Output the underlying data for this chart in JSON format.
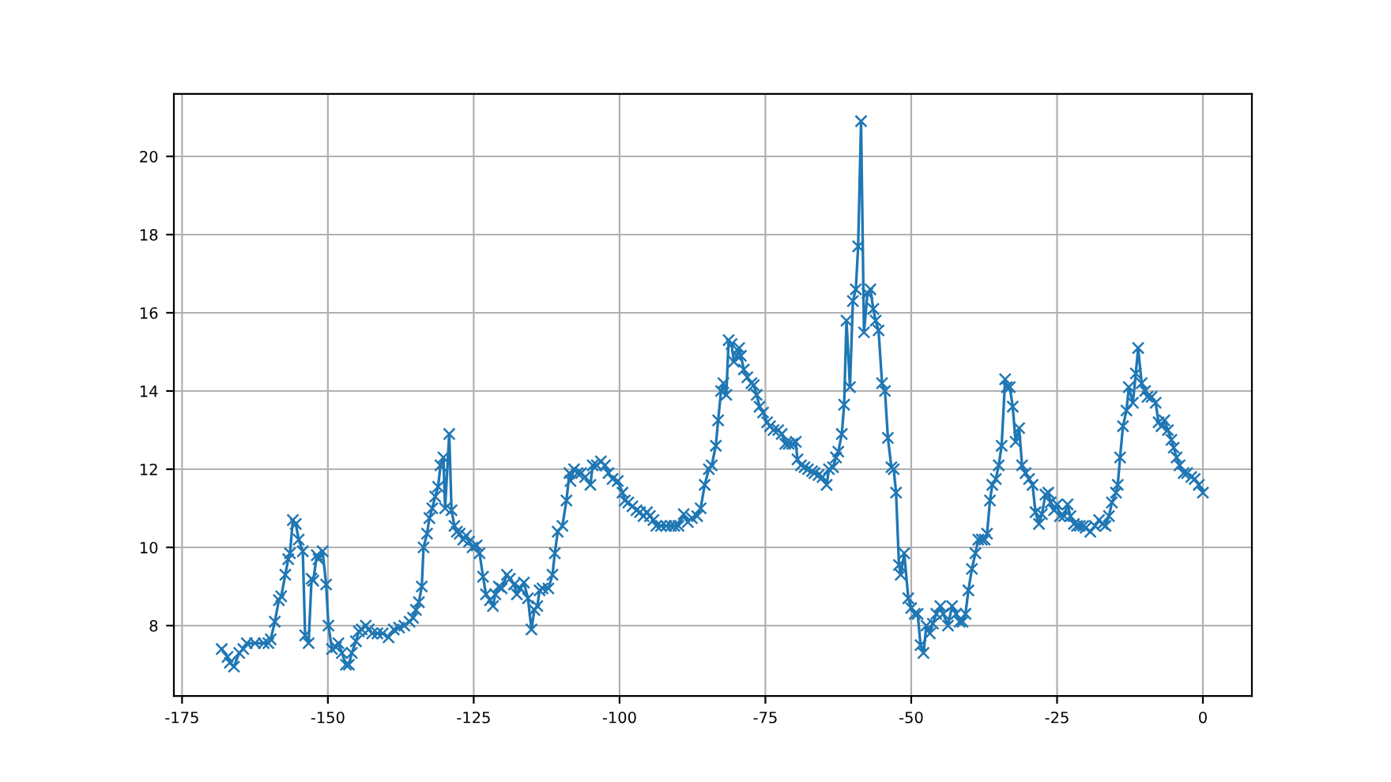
{
  "chart_data": {
    "type": "line",
    "x": [
      -168.2,
      -167.2,
      -166.8,
      -166.1,
      -165.2,
      -164.5,
      -163.9,
      -162.5,
      -161,
      -160.2,
      -159.8,
      -159.1,
      -158.4,
      -158.0,
      -157.3,
      -156.8,
      -156.5,
      -156.0,
      -155.5,
      -155.0,
      -154.3,
      -153.9,
      -153.3,
      -152.8,
      -152.5,
      -151.9,
      -151.6,
      -150.9,
      -150.3,
      -149.9,
      -149.3,
      -148.6,
      -148.2,
      -147.6,
      -146.9,
      -146.4,
      -145.9,
      -145.2,
      -144.7,
      -144.2,
      -143.5,
      -143.0,
      -142.4,
      -141.5,
      -140.6,
      -139.6,
      -138.7,
      -137.8,
      -136.9,
      -136.0,
      -135.4,
      -134.9,
      -134.4,
      -133.9,
      -133.6,
      -133.0,
      -132.6,
      -132.1,
      -131.6,
      -131.1,
      -130.7,
      -130.2,
      -129.9,
      -129.2,
      -128.8,
      -128.3,
      -127.9,
      -127.4,
      -126.8,
      -126.3,
      -125.8,
      -125.2,
      -124.5,
      -124.0,
      -123.4,
      -122.9,
      -122.2,
      -121.7,
      -121.3,
      -120.7,
      -120.2,
      -119.3,
      -118.8,
      -118.1,
      -117.6,
      -117.0,
      -116.4,
      -115.7,
      -115.1,
      -114.6,
      -114.1,
      -113.7,
      -113.2,
      -112.2,
      -111.5,
      -111.1,
      -110.6,
      -109.8,
      -109.1,
      -108.6,
      -108.4,
      -107.8,
      -107.2,
      -106.6,
      -105.9,
      -105.0,
      -104.6,
      -103.9,
      -103.2,
      -102.5,
      -101.9,
      -101.2,
      -100.3,
      -99.5,
      -99.1,
      -98.5,
      -97.8,
      -97.1,
      -96.5,
      -95.9,
      -95.3,
      -94.8,
      -94.2,
      -93.7,
      -92.9,
      -92.0,
      -91.2,
      -90.6,
      -89.9,
      -89.0,
      -88.3,
      -87.6,
      -86.7,
      -86.1,
      -85.4,
      -84.7,
      -84.2,
      -83.5,
      -83.1,
      -82.6,
      -82.2,
      -81.7,
      -81.3,
      -80.8,
      -80.4,
      -79.9,
      -79.5,
      -79.2,
      -78.7,
      -78.1,
      -77.4,
      -77.0,
      -76.5,
      -76.0,
      -75.4,
      -74.7,
      -74.2,
      -73.6,
      -72.8,
      -72.2,
      -71.6,
      -71.0,
      -70.4,
      -69.8,
      -69.5,
      -68.9,
      -68.3,
      -67.7,
      -67.0,
      -66.6,
      -65.9,
      -65.2,
      -64.5,
      -64.1,
      -63.4,
      -62.9,
      -62.5,
      -61.9,
      -61.5,
      -61.1,
      -60.5,
      -60.0,
      -59.5,
      -59.1,
      -58.6,
      -58.1,
      -57.5,
      -57.0,
      -56.5,
      -56.1,
      -55.6,
      -55.0,
      -54.5,
      -54.0,
      -53.4,
      -53.0,
      -52.6,
      -52.1,
      -51.8,
      -51.2,
      -50.5,
      -50.0,
      -49.4,
      -48.9,
      -48.4,
      -47.9,
      -47.4,
      -46.8,
      -46.3,
      -45.7,
      -45.0,
      -44.5,
      -43.7,
      -43.0,
      -42.3,
      -41.7,
      -41.2,
      -40.7,
      -40.2,
      -39.6,
      -39.0,
      -38.5,
      -37.9,
      -37.4,
      -37.0,
      -36.5,
      -36.1,
      -35.5,
      -35.0,
      -34.5,
      -33.9,
      -33.6,
      -33.1,
      -32.6,
      -32.1,
      -31.5,
      -31.0,
      -30.4,
      -29.8,
      -29.2,
      -28.7,
      -28.1,
      -27.6,
      -27.0,
      -26.5,
      -26.1,
      -25.5,
      -25.0,
      -24.5,
      -23.8,
      -23.2,
      -22.7,
      -22.1,
      -21.6,
      -21.1,
      -20.5,
      -20.1,
      -19.3,
      -18.5,
      -17.8,
      -17.2,
      -16.7,
      -16.1,
      -15.6,
      -14.9,
      -14.6,
      -14.2,
      -13.7,
      -13.1,
      -12.7,
      -12.0,
      -11.5,
      -11.1,
      -10.5,
      -9.9,
      -9.5,
      -8.8,
      -8.1,
      -7.6,
      -7.1,
      -6.6,
      -6.0,
      -5.4,
      -5.0,
      -4.5,
      -4.0,
      -3.3,
      -2.7,
      -2.0,
      -1.4,
      -0.7,
      0
    ],
    "series": [
      {
        "color": "#1f77b4",
        "values": [
          7.4,
          7.2,
          7.05,
          6.95,
          7.3,
          7.4,
          7.55,
          7.55,
          7.55,
          7.55,
          7.65,
          8.1,
          8.65,
          8.75,
          9.3,
          9.7,
          9.85,
          10.7,
          10.6,
          10.2,
          9.9,
          7.75,
          7.55,
          9.2,
          9.15,
          9.8,
          9.7,
          9.9,
          9.05,
          8.0,
          7.4,
          7.45,
          7.55,
          7.3,
          7.0,
          7.0,
          7.3,
          7.6,
          7.85,
          7.9,
          8.0,
          7.9,
          7.8,
          7.8,
          7.8,
          7.7,
          7.9,
          7.95,
          8.0,
          8.1,
          8.2,
          8.4,
          8.6,
          9.0,
          10.0,
          10.35,
          10.75,
          11.0,
          11.3,
          11.55,
          12.1,
          12.3,
          11.0,
          12.9,
          10.95,
          10.55,
          10.4,
          10.35,
          10.2,
          10.3,
          10.15,
          10.0,
          10.05,
          9.85,
          9.25,
          8.8,
          8.65,
          8.5,
          8.8,
          9.0,
          8.95,
          9.3,
          9.2,
          9.05,
          8.8,
          8.95,
          9.1,
          8.7,
          7.9,
          8.4,
          8.5,
          8.9,
          8.95,
          8.95,
          9.3,
          9.85,
          10.4,
          10.55,
          11.2,
          11.9,
          11.7,
          12.0,
          11.9,
          11.9,
          11.8,
          11.6,
          12.1,
          12.1,
          12.2,
          12.1,
          11.9,
          11.75,
          11.7,
          11.4,
          11.2,
          11.15,
          11.05,
          10.95,
          10.9,
          10.8,
          10.9,
          10.8,
          10.7,
          10.55,
          10.55,
          10.55,
          10.55,
          10.55,
          10.55,
          10.85,
          10.65,
          10.75,
          10.8,
          11.0,
          11.6,
          12.0,
          12.1,
          12.6,
          13.25,
          14.0,
          14.2,
          13.9,
          15.3,
          15.2,
          14.75,
          14.9,
          15.1,
          14.9,
          14.55,
          14.35,
          14.2,
          14.15,
          13.9,
          13.6,
          13.45,
          13.2,
          13.1,
          13.0,
          13.0,
          12.9,
          12.65,
          12.65,
          12.65,
          12.7,
          12.25,
          12.1,
          12.05,
          12.0,
          11.95,
          11.9,
          11.85,
          11.8,
          11.6,
          12.0,
          12.05,
          12.3,
          12.45,
          12.9,
          13.65,
          15.8,
          14.1,
          16.3,
          16.6,
          17.7,
          20.9,
          15.5,
          16.5,
          16.6,
          16.1,
          15.8,
          15.55,
          14.2,
          14.0,
          12.8,
          12.05,
          12.0,
          11.4,
          9.55,
          9.3,
          9.85,
          8.7,
          8.45,
          8.3,
          8.3,
          7.5,
          7.3,
          8.0,
          7.8,
          8.05,
          8.3,
          8.5,
          8.3,
          8.0,
          8.5,
          8.3,
          8.1,
          8.1,
          8.3,
          8.9,
          9.45,
          9.85,
          10.2,
          10.2,
          10.2,
          10.35,
          11.2,
          11.6,
          11.75,
          12.1,
          12.6,
          14.3,
          14.1,
          14.1,
          13.6,
          12.7,
          13.05,
          12.1,
          11.9,
          11.75,
          11.6,
          10.9,
          10.6,
          10.85,
          11.35,
          11.4,
          11.15,
          10.95,
          11.1,
          10.8,
          10.8,
          11.1,
          10.8,
          10.6,
          10.55,
          10.55,
          10.55,
          10.5,
          10.4,
          10.55,
          10.7,
          10.6,
          10.55,
          10.8,
          11.15,
          11.4,
          11.6,
          12.3,
          13.1,
          13.5,
          14.1,
          13.7,
          14.45,
          15.1,
          14.2,
          14.0,
          13.85,
          13.85,
          13.7,
          13.2,
          13.1,
          13.25,
          13.0,
          12.75,
          12.55,
          12.3,
          12.1,
          11.9,
          11.9,
          11.8,
          11.75,
          11.6,
          11.4
        ]
      }
    ],
    "xlim": [
      -176.4,
      8.4
    ],
    "ylim": [
      6.2,
      21.6
    ],
    "xticks": [
      -175,
      -150,
      -125,
      -100,
      -75,
      -50,
      -25,
      0
    ],
    "yticks": [
      8,
      10,
      12,
      14,
      16,
      18,
      20
    ],
    "grid": true,
    "marker": "cross",
    "line_style": "solid"
  }
}
